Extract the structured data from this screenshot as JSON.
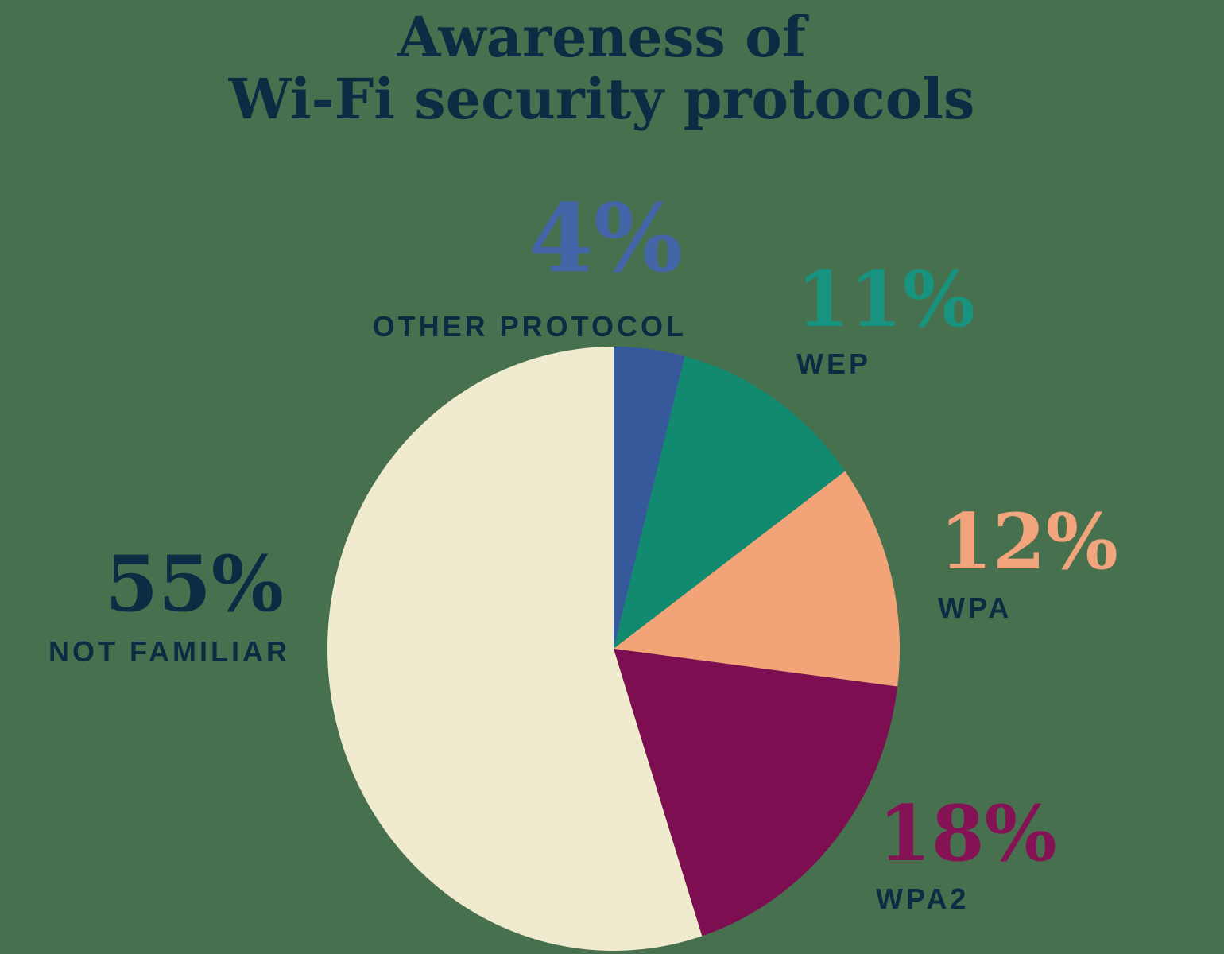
{
  "colors": {
    "background": "#47714E",
    "text_navy": "#0E2B44"
  },
  "title": {
    "line1": "Awareness of",
    "line2": "Wi-Fi security protocols"
  },
  "chart_data": {
    "type": "pie",
    "title": "Awareness of Wi-Fi security protocols",
    "start_angle_deg": 0,
    "direction": "clockwise",
    "legend_position": "around-pie-callouts",
    "segments": [
      {
        "label": "OTHER PROTOCOL",
        "value_pct": 4,
        "value_text": "4%",
        "color": "#36599B",
        "number_color": "#4465A8"
      },
      {
        "label": "WEP",
        "value_pct": 11,
        "value_text": "11%",
        "color": "#118A70",
        "number_color": "#17937F"
      },
      {
        "label": "WPA",
        "value_pct": 12,
        "value_text": "12%",
        "color": "#F2A378",
        "number_color": "#F2A47D"
      },
      {
        "label": "WPA2",
        "value_pct": 18,
        "value_text": "18%",
        "color": "#7D0E52",
        "number_color": "#861256"
      },
      {
        "label": "NOT FAMILIAR",
        "value_pct": 55,
        "value_text": "55%",
        "color": "#F0EBCF",
        "number_color": "#0E2B44"
      }
    ]
  }
}
